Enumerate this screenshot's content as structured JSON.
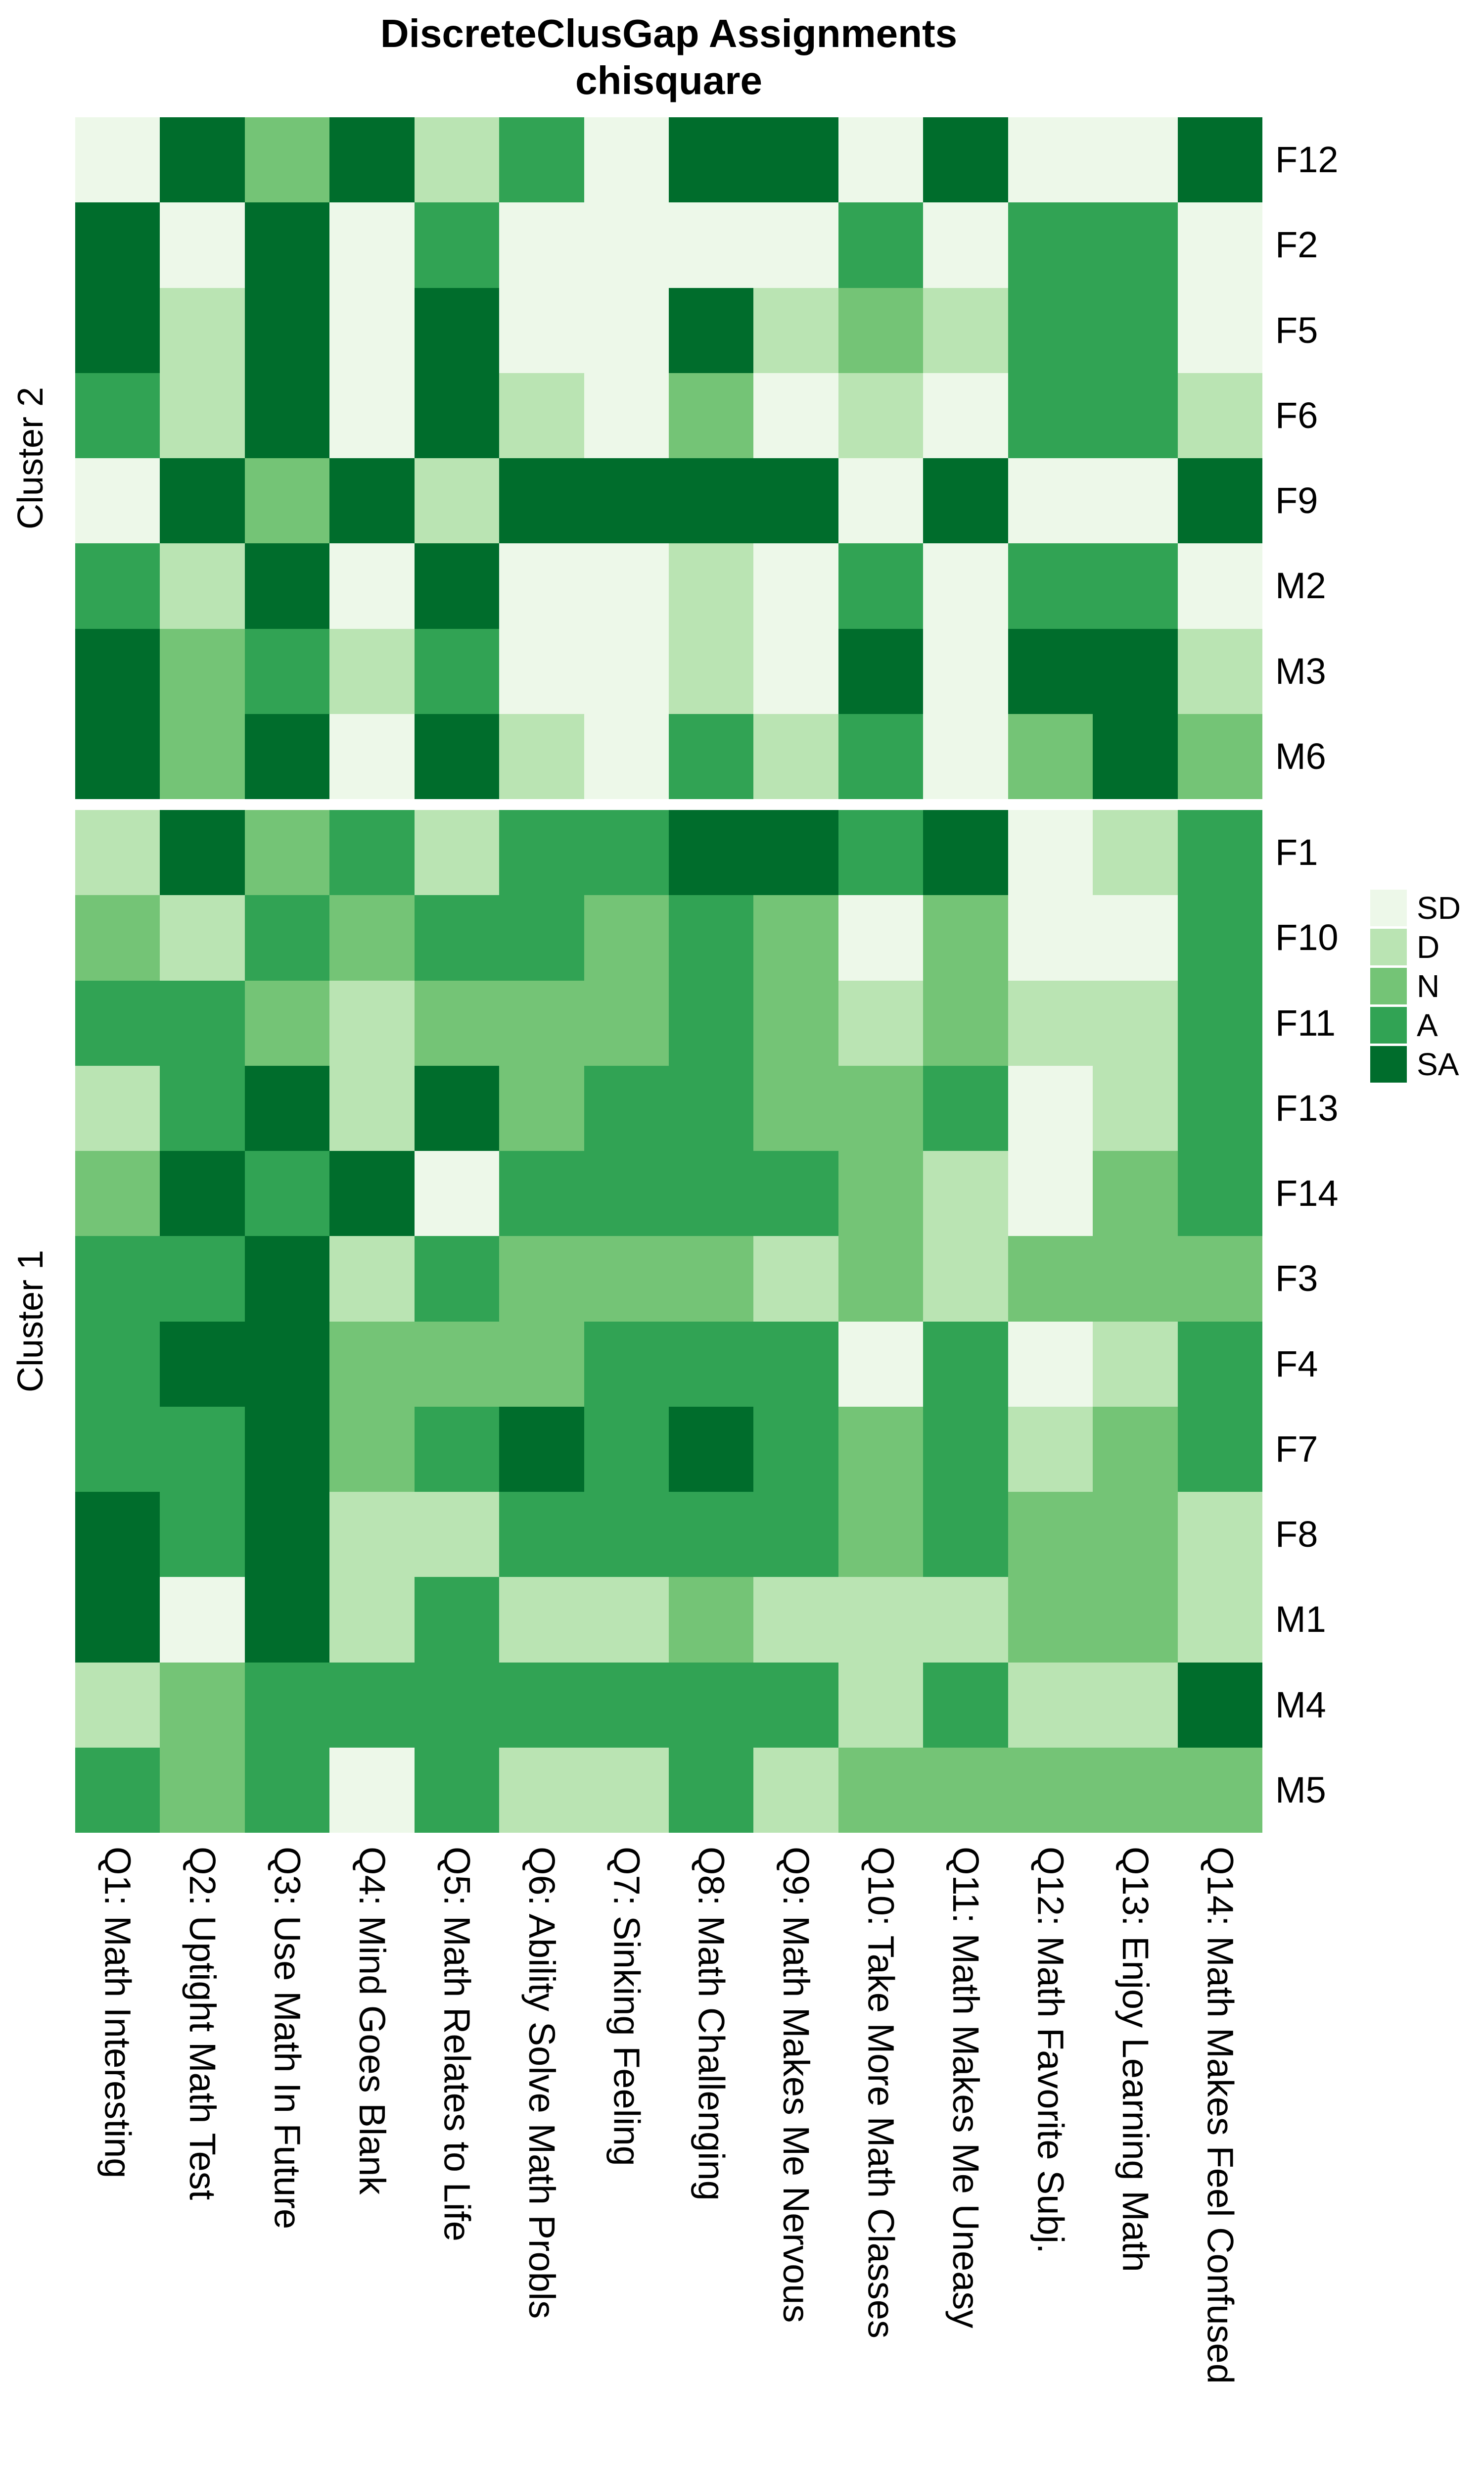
{
  "title": {
    "line1": "DiscreteClusGap Assignments",
    "line2": "chisquare"
  },
  "chart_data": {
    "type": "heatmap",
    "title": "DiscreteClusGap Assignments",
    "subtitle": "chisquare",
    "legend_position": "right",
    "legend": [
      {
        "label": "SD",
        "color": "#EDF8E9"
      },
      {
        "label": "D",
        "color": "#BAE4B3"
      },
      {
        "label": "N",
        "color": "#74C476"
      },
      {
        "label": "A",
        "color": "#31A354"
      },
      {
        "label": "SA",
        "color": "#006D2C"
      }
    ],
    "columns": [
      "Q1: Math Interesting",
      "Q2: Uptight Math Test",
      "Q3: Use Math In Future",
      "Q4: Mind Goes Blank",
      "Q5: Math Relates to Life",
      "Q6: Ability Solve Math Probls",
      "Q7: Sinking Feeling",
      "Q8: Math Challenging",
      "Q9: Math Makes Me Nervous",
      "Q10: Take More Math Classes",
      "Q11: Math Makes Me Uneasy",
      "Q12: Math Favorite Subj.",
      "Q13: Enjoy Learning Math",
      "Q14: Math Makes Feel Confused"
    ],
    "clusters": [
      {
        "name": "Cluster 2",
        "rows": [
          {
            "id": "F12",
            "values": [
              "SD",
              "SA",
              "N",
              "SA",
              "D",
              "A",
              "SD",
              "SA",
              "SA",
              "SD",
              "SA",
              "SD",
              "SD",
              "SA"
            ]
          },
          {
            "id": "F2",
            "values": [
              "SA",
              "SD",
              "SA",
              "SD",
              "A",
              "SD",
              "SD",
              "SD",
              "SD",
              "A",
              "SD",
              "A",
              "A",
              "SD"
            ]
          },
          {
            "id": "F5",
            "values": [
              "SA",
              "D",
              "SA",
              "SD",
              "SA",
              "SD",
              "SD",
              "SA",
              "D",
              "N",
              "D",
              "A",
              "A",
              "SD"
            ]
          },
          {
            "id": "F6",
            "values": [
              "A",
              "D",
              "SA",
              "SD",
              "SA",
              "D",
              "SD",
              "N",
              "SD",
              "D",
              "SD",
              "A",
              "A",
              "D"
            ]
          },
          {
            "id": "F9",
            "values": [
              "SD",
              "SA",
              "N",
              "SA",
              "D",
              "SA",
              "SA",
              "SA",
              "SA",
              "SD",
              "SA",
              "SD",
              "SD",
              "SA"
            ]
          },
          {
            "id": "M2",
            "values": [
              "A",
              "D",
              "SA",
              "SD",
              "SA",
              "SD",
              "SD",
              "D",
              "SD",
              "A",
              "SD",
              "A",
              "A",
              "SD"
            ]
          },
          {
            "id": "M3",
            "values": [
              "SA",
              "N",
              "A",
              "D",
              "A",
              "SD",
              "SD",
              "D",
              "SD",
              "SA",
              "SD",
              "SA",
              "SA",
              "D"
            ]
          },
          {
            "id": "M6",
            "values": [
              "SA",
              "N",
              "SA",
              "SD",
              "SA",
              "D",
              "SD",
              "A",
              "D",
              "A",
              "SD",
              "N",
              "SA",
              "N"
            ]
          }
        ]
      },
      {
        "name": "Cluster 1",
        "rows": [
          {
            "id": "F1",
            "values": [
              "D",
              "SA",
              "N",
              "A",
              "D",
              "A",
              "A",
              "SA",
              "SA",
              "A",
              "SA",
              "SD",
              "D",
              "A"
            ]
          },
          {
            "id": "F10",
            "values": [
              "N",
              "D",
              "A",
              "N",
              "A",
              "A",
              "N",
              "A",
              "N",
              "SD",
              "N",
              "SD",
              "SD",
              "A"
            ]
          },
          {
            "id": "F11",
            "values": [
              "A",
              "A",
              "N",
              "D",
              "N",
              "N",
              "N",
              "A",
              "N",
              "D",
              "N",
              "D",
              "D",
              "A"
            ]
          },
          {
            "id": "F13",
            "values": [
              "D",
              "A",
              "SA",
              "D",
              "SA",
              "N",
              "A",
              "A",
              "N",
              "N",
              "A",
              "SD",
              "D",
              "A"
            ]
          },
          {
            "id": "F14",
            "values": [
              "N",
              "SA",
              "A",
              "SA",
              "SD",
              "A",
              "A",
              "A",
              "A",
              "N",
              "D",
              "SD",
              "N",
              "A"
            ]
          },
          {
            "id": "F3",
            "values": [
              "A",
              "A",
              "SA",
              "D",
              "A",
              "N",
              "N",
              "N",
              "D",
              "N",
              "D",
              "N",
              "N",
              "N"
            ]
          },
          {
            "id": "F4",
            "values": [
              "A",
              "SA",
              "SA",
              "N",
              "N",
              "N",
              "A",
              "A",
              "A",
              "SD",
              "A",
              "SD",
              "D",
              "A"
            ]
          },
          {
            "id": "F7",
            "values": [
              "A",
              "A",
              "SA",
              "N",
              "A",
              "SA",
              "A",
              "SA",
              "A",
              "N",
              "A",
              "D",
              "N",
              "A"
            ]
          },
          {
            "id": "F8",
            "values": [
              "SA",
              "A",
              "SA",
              "D",
              "D",
              "A",
              "A",
              "A",
              "A",
              "N",
              "A",
              "N",
              "N",
              "D"
            ]
          },
          {
            "id": "M1",
            "values": [
              "SA",
              "SD",
              "SA",
              "D",
              "A",
              "D",
              "D",
              "N",
              "D",
              "D",
              "D",
              "N",
              "N",
              "D"
            ]
          },
          {
            "id": "M4",
            "values": [
              "D",
              "N",
              "A",
              "A",
              "A",
              "A",
              "A",
              "A",
              "A",
              "D",
              "A",
              "D",
              "D",
              "SA"
            ]
          },
          {
            "id": "M5",
            "values": [
              "A",
              "N",
              "A",
              "SD",
              "A",
              "D",
              "D",
              "A",
              "D",
              "N",
              "N",
              "N",
              "N",
              "N"
            ]
          }
        ]
      }
    ]
  }
}
